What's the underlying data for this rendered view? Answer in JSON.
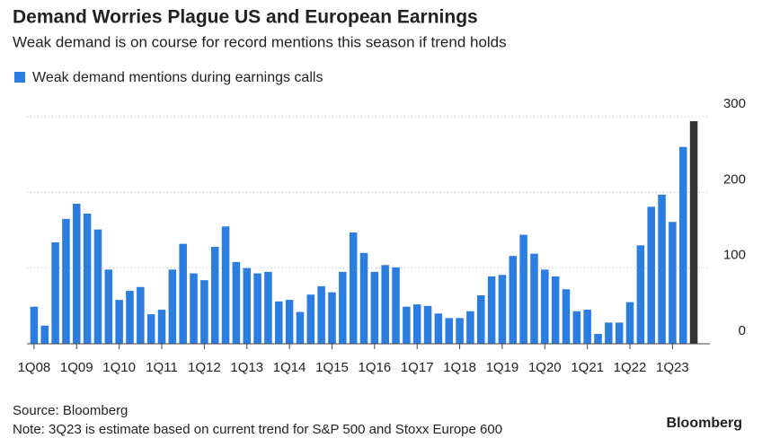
{
  "chart_data": {
    "type": "bar",
    "title": "Demand Worries Plague US and European Earnings",
    "subtitle": "Weak demand is on course for record mentions this season if trend holds",
    "legend": "Weak demand mentions during earnings calls",
    "source": "Source: Bloomberg",
    "note": "Note: 3Q23 is estimate based on current trend for S&P 500 and Stoxx Europe 600",
    "brand": "Bloomberg",
    "categories": [
      "1Q08",
      null,
      null,
      null,
      "1Q09",
      null,
      null,
      null,
      "1Q10",
      null,
      null,
      null,
      "1Q11",
      null,
      null,
      null,
      "1Q12",
      null,
      null,
      null,
      "1Q13",
      null,
      null,
      null,
      "1Q14",
      null,
      null,
      null,
      "1Q15",
      null,
      null,
      null,
      "1Q16",
      null,
      null,
      null,
      "1Q17",
      null,
      null,
      null,
      "1Q18",
      null,
      null,
      null,
      "1Q19",
      null,
      null,
      null,
      "1Q20",
      null,
      null,
      null,
      "1Q21",
      null,
      null,
      null,
      "1Q22",
      null,
      null,
      null,
      "1Q23",
      null,
      null
    ],
    "values": [
      49,
      24,
      134,
      165,
      185,
      172,
      151,
      98,
      58,
      70,
      75,
      39,
      45,
      98,
      132,
      93,
      84,
      128,
      155,
      108,
      100,
      93,
      95,
      56,
      58,
      42,
      65,
      76,
      68,
      95,
      147,
      120,
      95,
      104,
      101,
      49,
      52,
      50,
      40,
      34,
      34,
      43,
      64,
      89,
      91,
      116,
      144,
      119,
      98,
      89,
      72,
      43,
      45,
      13,
      28,
      28,
      55,
      130,
      181,
      197,
      161,
      260,
      294
    ],
    "colors": [
      "#2b7de0",
      "#2b7de0",
      "#2b7de0",
      "#2b7de0",
      "#2b7de0",
      "#2b7de0",
      "#2b7de0",
      "#2b7de0",
      "#2b7de0",
      "#2b7de0",
      "#2b7de0",
      "#2b7de0",
      "#2b7de0",
      "#2b7de0",
      "#2b7de0",
      "#2b7de0",
      "#2b7de0",
      "#2b7de0",
      "#2b7de0",
      "#2b7de0",
      "#2b7de0",
      "#2b7de0",
      "#2b7de0",
      "#2b7de0",
      "#2b7de0",
      "#2b7de0",
      "#2b7de0",
      "#2b7de0",
      "#2b7de0",
      "#2b7de0",
      "#2b7de0",
      "#2b7de0",
      "#2b7de0",
      "#2b7de0",
      "#2b7de0",
      "#2b7de0",
      "#2b7de0",
      "#2b7de0",
      "#2b7de0",
      "#2b7de0",
      "#2b7de0",
      "#2b7de0",
      "#2b7de0",
      "#2b7de0",
      "#2b7de0",
      "#2b7de0",
      "#2b7de0",
      "#2b7de0",
      "#2b7de0",
      "#2b7de0",
      "#2b7de0",
      "#2b7de0",
      "#2b7de0",
      "#2b7de0",
      "#2b7de0",
      "#2b7de0",
      "#2b7de0",
      "#2b7de0",
      "#2b7de0",
      "#2b7de0",
      "#2b7de0",
      "#2b7de0",
      "#333333"
    ],
    "legend_color": "#2b7de0",
    "ylim": [
      0,
      300
    ],
    "yticks": [
      0,
      100,
      200,
      300
    ],
    "grid": true
  }
}
